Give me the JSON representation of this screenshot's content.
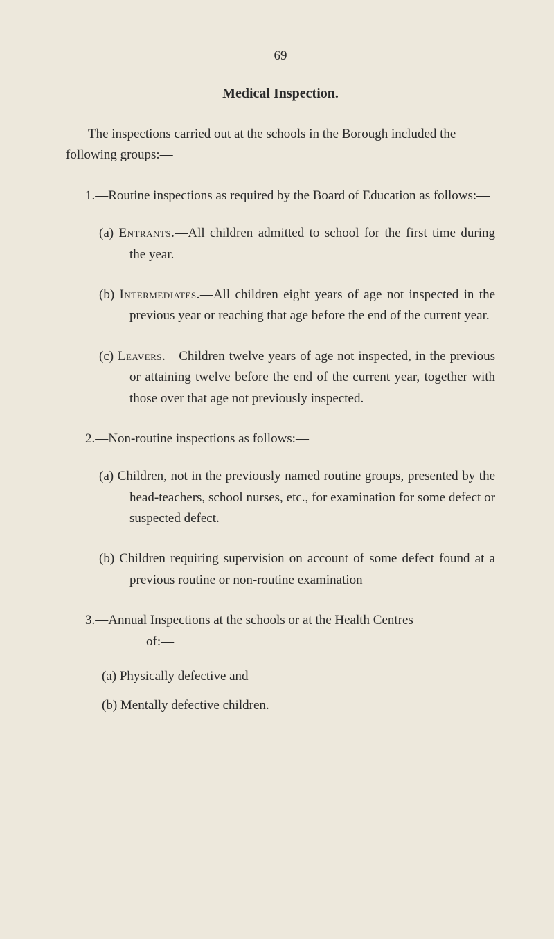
{
  "page_number": "69",
  "title": "Medical Inspection.",
  "intro": "The inspections carried out at the schools in the Borough included the following groups:—",
  "section1": {
    "heading": "1.—Routine inspections as required by the Board of Education as follows:—",
    "items": {
      "a": {
        "label": "(a)",
        "caps": "Entrants.",
        "text": "—All children admitted to school for the first time during the year."
      },
      "b": {
        "label": "(b)",
        "caps": "Intermediates.",
        "text": "—All children eight years of age not inspected in the previous year or reaching that age before the end of the current year."
      },
      "c": {
        "label": "(c)",
        "caps": "Leavers.",
        "text": "—Children twelve years of age not inspected, in the previous or attaining twelve before the end of the current year, together with those over that age not previously inspected."
      }
    }
  },
  "section2": {
    "heading": "2.—Non-routine inspections as follows:—",
    "items": {
      "a": {
        "label": "(a)",
        "text": "Children, not in the previously named routine groups, presented by the head-teachers, school nurses, etc., for examination for some defect or suspected defect."
      },
      "b": {
        "label": "(b)",
        "text": "Children requiring supervision on account of some defect found at a previous routine or non-routine examination"
      }
    }
  },
  "section3": {
    "heading_line1": "3.—Annual Inspections at the schools or at the Health Centres",
    "heading_line2": "of:—",
    "items": {
      "a": {
        "label": "(a)",
        "text": "Physically defective and"
      },
      "b": {
        "label": "(b)",
        "text": "Mentally defective children."
      }
    }
  },
  "colors": {
    "background": "#ede8dc",
    "text": "#2a2a2a"
  },
  "typography": {
    "body_fontsize": 19,
    "title_fontsize": 20,
    "line_height": 1.6
  }
}
